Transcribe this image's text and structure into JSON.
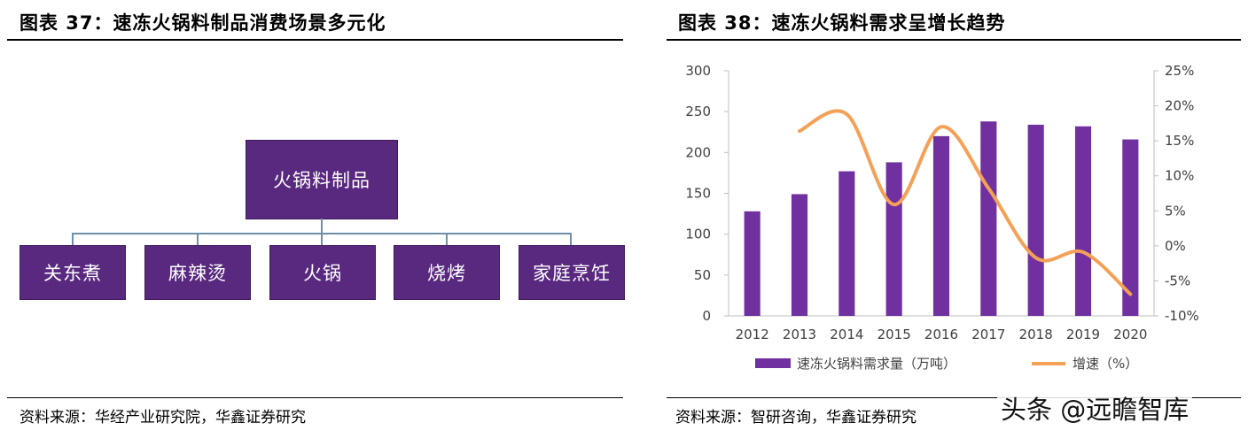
{
  "left": {
    "title": "图表 37：速冻火锅料制品消费场景多元化",
    "root": "火锅料制品",
    "children": [
      "关东煮",
      "麻辣烫",
      "火锅",
      "烧烤",
      "家庭烹饪"
    ],
    "source": "资料来源：华经产业研究院，华鑫证券研究"
  },
  "right": {
    "title": "图表 38：速冻火锅料需求呈增长趋势",
    "source": "资料来源：智研咨询，华鑫证券研究"
  },
  "watermark": "头条 @远瞻智库",
  "colors": {
    "bar": "#7030a0",
    "line": "#f4a157",
    "box": "#58297f"
  },
  "chart_data": {
    "type": "bar",
    "categories": [
      "2012",
      "2013",
      "2014",
      "2015",
      "2016",
      "2017",
      "2018",
      "2019",
      "2020"
    ],
    "series": [
      {
        "name": "速冻火锅料需求量（万吨）",
        "type": "bar",
        "axis": "left",
        "values": [
          128,
          149,
          177,
          188,
          220,
          238,
          234,
          232,
          216
        ]
      },
      {
        "name": "增速（%）",
        "type": "line",
        "axis": "right",
        "values": [
          null,
          16.4,
          18.8,
          5.9,
          17.0,
          8.2,
          -1.7,
          -0.9,
          -6.9
        ]
      }
    ],
    "ylim_left": [
      0,
      300
    ],
    "yticks_left": [
      "0",
      "50",
      "100",
      "150",
      "200",
      "250",
      "300"
    ],
    "ylim_right": [
      -10,
      25
    ],
    "yticks_right": [
      "-10%",
      "-5%",
      "0%",
      "5%",
      "10%",
      "15%",
      "20%",
      "25%"
    ],
    "grid": false,
    "legend": "bottom"
  }
}
